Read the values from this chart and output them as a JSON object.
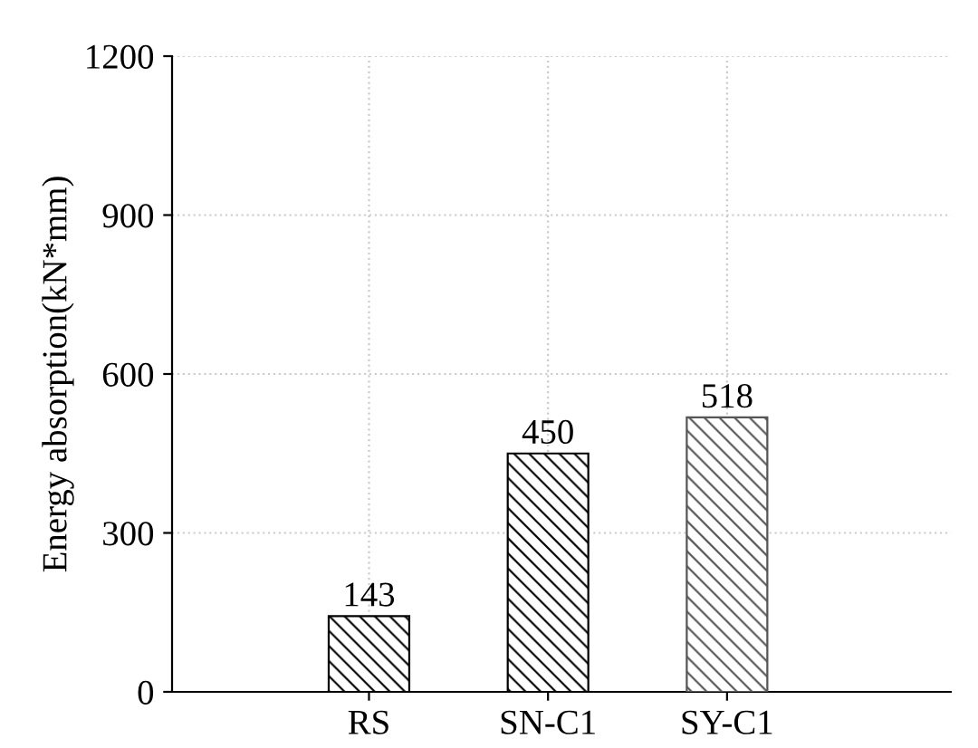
{
  "chart_data": {
    "type": "bar",
    "ylabel": "Energy absorption(kN*mm)",
    "categories": [
      "RS",
      "SN-C1",
      "SY-C1"
    ],
    "values": [
      143,
      450,
      518
    ],
    "colors": [
      "#000000",
      "#000000",
      "#555555"
    ],
    "ylim": [
      0,
      1200
    ],
    "yticks": [
      0,
      300,
      600,
      900,
      1200
    ],
    "grid": true,
    "data_labels": true
  }
}
